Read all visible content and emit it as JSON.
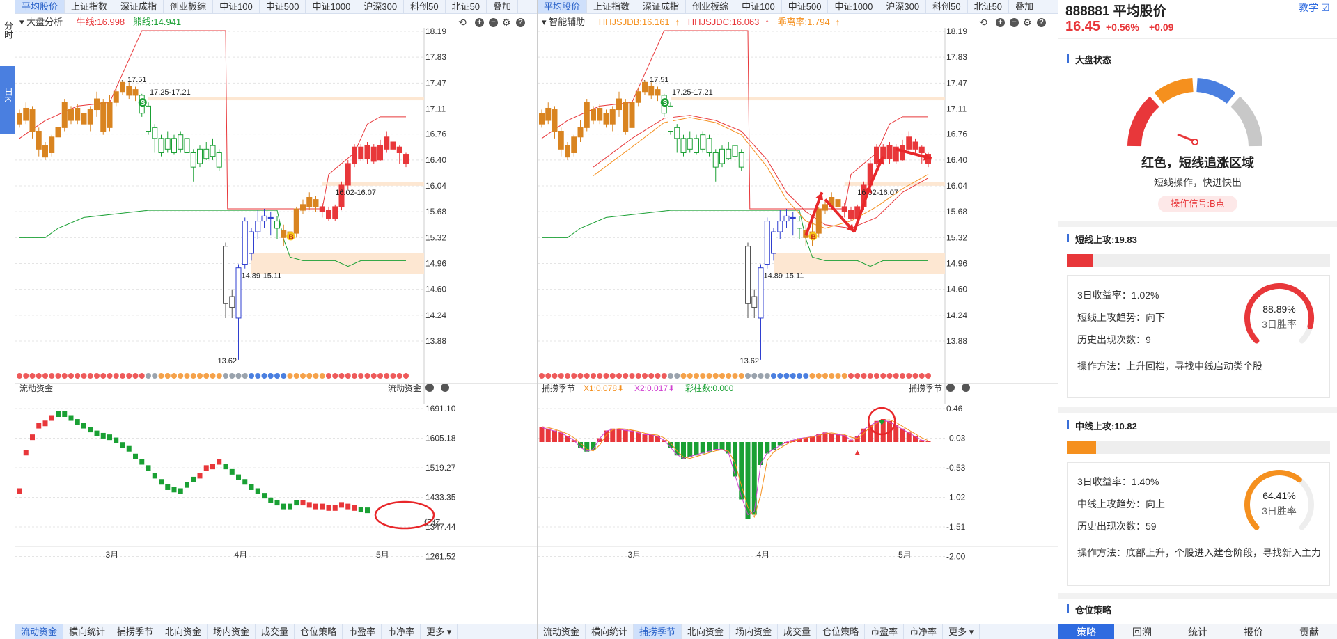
{
  "sidebar": {
    "tabs": [
      {
        "label": "分时",
        "active": false
      },
      {
        "label": "日K",
        "active": true
      }
    ]
  },
  "top_tabs": [
    "平均股价",
    "上证指数",
    "深证成指",
    "创业板综",
    "中证100",
    "中证500",
    "中证1000",
    "沪深300",
    "科创50",
    "北证50",
    "叠加"
  ],
  "left_panel": {
    "indicator_name": "大盘分析",
    "niu_line": "牛线:16.998",
    "xiong_line": "熊线:14.941",
    "y_ticks": [
      "18.19",
      "17.83",
      "17.47",
      "17.11",
      "16.76",
      "16.40",
      "16.04",
      "15.68",
      "15.32",
      "14.96",
      "14.60",
      "14.24",
      "13.88"
    ],
    "sub_name": "流动资金",
    "sub_name_right": "流动资金",
    "sub_y_ticks": [
      "1691.10",
      "1605.18",
      "1519.27",
      "1433.35",
      "1347.44",
      "1261.52"
    ],
    "sub_unit": "亿亿",
    "x_months": [
      "3月",
      "4月",
      "5月"
    ]
  },
  "right_chart_panel": {
    "indicator_name": "智能辅助",
    "hhjsjdb": "HHJSJDB:16.161",
    "hhjsjdc": "HHJSJDC:16.063",
    "deviation": "乖离率:1.794",
    "y_ticks": [
      "18.19",
      "17.83",
      "17.47",
      "17.11",
      "16.76",
      "16.40",
      "16.04",
      "15.68",
      "15.32",
      "14.96",
      "14.60",
      "14.24",
      "13.88"
    ],
    "sub_name": "捕捞季节",
    "x1": "X1:0.078",
    "x2": "X2:0.017",
    "bars": "彩柱数:0.000",
    "sub_name_right": "捕捞季节",
    "sub_y_ticks": [
      "0.46",
      "-0.03",
      "-0.53",
      "-1.02",
      "-1.51",
      "-2.00"
    ],
    "x_months": [
      "3月",
      "4月",
      "5月"
    ]
  },
  "annotations": {
    "high": "17.51",
    "low": "13.62",
    "zone_top": "17.25-17.21",
    "zone_mid": "16.02-16.07",
    "zone_low": "14.89-15.11",
    "signal_s": "S",
    "signal_b": "B"
  },
  "bottom_tabs": [
    "流动资金",
    "横向统计",
    "捕捞季节",
    "北向资金",
    "场内资金",
    "成交量",
    "仓位策略",
    "市盈率",
    "市净率",
    "更多"
  ],
  "info": {
    "code_name": "888881 平均股价",
    "teach": "教学",
    "price": "16.45",
    "change_pct": "+0.56%",
    "change": "+0.09",
    "market_state_title": "大盘状态",
    "gauge_status": "红色，短线追涨区域",
    "gauge_advice": "短线操作，快进快出",
    "signal": "操作信号:B点",
    "short_title": "短线上攻:19.83",
    "short_rate": "3日收益率：1.02%",
    "short_trend": "短线上攻趋势：向下",
    "short_count": "历史出现次数：9",
    "short_method": "操作方法：上升回档，寻找中线启动类个股",
    "short_win": "88.89%",
    "win_label": "3日胜率",
    "mid_title": "中线上攻:10.82",
    "mid_rate": "3日收益率：1.40%",
    "mid_trend": "中线上攻趋势：向上",
    "mid_count": "历史出现次数：59",
    "mid_method": "操作方法：底部上升，个股进入建仓阶段，寻找新入主力",
    "mid_win": "64.41%",
    "position_title": "仓位策略",
    "short_progress": 0.1,
    "mid_progress": 0.11,
    "short_gauge_pct": 88.89,
    "mid_gauge_pct": 64.41
  },
  "right_bottom_tabs": [
    "策略",
    "回溯",
    "统计",
    "报价",
    "贡献"
  ],
  "colors": {
    "up": "#e8373a",
    "down": "#1aa034",
    "accent": "#2f6be0",
    "orange": "#f5901e"
  }
}
